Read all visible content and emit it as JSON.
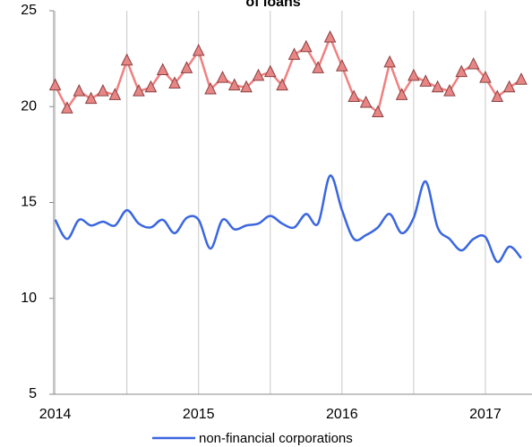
{
  "chart_data": {
    "type": "line",
    "title": "of loans",
    "x": [
      2014,
      2014.083,
      2014.167,
      2014.25,
      2014.333,
      2014.417,
      2014.5,
      2014.583,
      2014.667,
      2014.75,
      2014.833,
      2014.917,
      2015,
      2015.083,
      2015.167,
      2015.25,
      2015.333,
      2015.417,
      2015.5,
      2015.583,
      2015.667,
      2015.75,
      2015.833,
      2015.917,
      2016,
      2016.083,
      2016.167,
      2016.25,
      2016.333,
      2016.417,
      2016.5,
      2016.583,
      2016.667,
      2016.75,
      2016.833,
      2016.917,
      2017,
      2017.083,
      2017.167,
      2017.25
    ],
    "series": [
      {
        "color": "#f08080",
        "marker": "triangle",
        "smooth": false,
        "values": [
          21.1,
          19.9,
          20.8,
          20.4,
          20.8,
          20.6,
          22.4,
          20.8,
          21.0,
          21.9,
          21.2,
          22.0,
          22.9,
          20.9,
          21.5,
          21.1,
          21.0,
          21.6,
          21.8,
          21.1,
          22.7,
          23.1,
          22.0,
          23.6,
          22.1,
          20.5,
          20.2,
          19.7,
          22.3,
          20.6,
          21.6,
          21.3,
          21.0,
          20.8,
          21.8,
          22.2,
          21.5,
          20.5,
          21.0,
          21.4
        ]
      },
      {
        "name": "non-financial corporations",
        "color": "#3a66e0",
        "smooth": true,
        "values": [
          14.1,
          13.1,
          14.1,
          13.8,
          14.0,
          13.8,
          14.6,
          13.9,
          13.7,
          14.1,
          13.4,
          14.2,
          14.1,
          12.6,
          14.1,
          13.6,
          13.8,
          13.9,
          14.3,
          13.9,
          13.7,
          14.4,
          13.9,
          16.4,
          14.6,
          13.1,
          13.3,
          13.7,
          14.4,
          13.4,
          14.2,
          16.1,
          13.7,
          13.1,
          12.5,
          13.1,
          13.2,
          11.9,
          12.7,
          12.1
        ]
      }
    ],
    "xlim": [
      2013.99,
      2017.325
    ],
    "xticks": [
      2014,
      2015,
      2016,
      2017
    ],
    "xminor": [
      2014.5,
      2015.5,
      2016.5
    ],
    "ylim": [
      5,
      25
    ],
    "yticks": [
      5,
      10,
      15,
      20,
      25
    ],
    "grid": "x",
    "legend": "bottom"
  }
}
